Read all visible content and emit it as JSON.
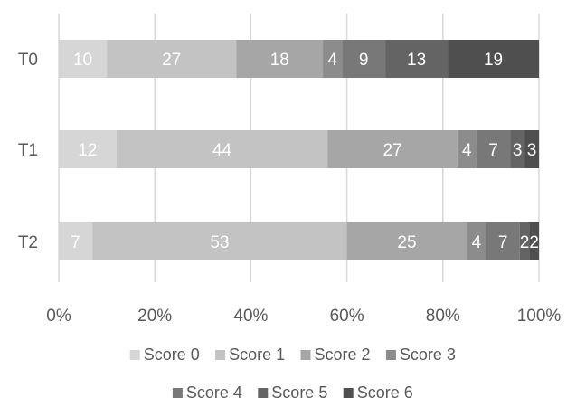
{
  "chart_data": {
    "type": "bar",
    "orientation": "horizontal",
    "stacked": "percent",
    "categories": [
      "T0",
      "T1",
      "T2"
    ],
    "series": [
      {
        "name": "Score 0",
        "values": [
          10,
          12,
          7
        ],
        "color": "#d6d6d6"
      },
      {
        "name": "Score 1",
        "values": [
          27,
          44,
          53
        ],
        "color": "#c3c3c3"
      },
      {
        "name": "Score 2",
        "values": [
          18,
          27,
          25
        ],
        "color": "#a6a6a6"
      },
      {
        "name": "Score 3",
        "values": [
          4,
          4,
          4
        ],
        "color": "#8c8c8c"
      },
      {
        "name": "Score 4",
        "values": [
          9,
          7,
          7
        ],
        "color": "#787878"
      },
      {
        "name": "Score 5",
        "values": [
          13,
          3,
          2
        ],
        "color": "#646464"
      },
      {
        "name": "Score 6",
        "values": [
          19,
          3,
          2
        ],
        "color": "#4f4f4f"
      }
    ],
    "xlim": [
      0,
      100
    ],
    "x_ticks": [
      "0%",
      "20%",
      "40%",
      "60%",
      "80%",
      "100%"
    ],
    "grid": true,
    "legend_position": "bottom",
    "data_labels": true
  }
}
